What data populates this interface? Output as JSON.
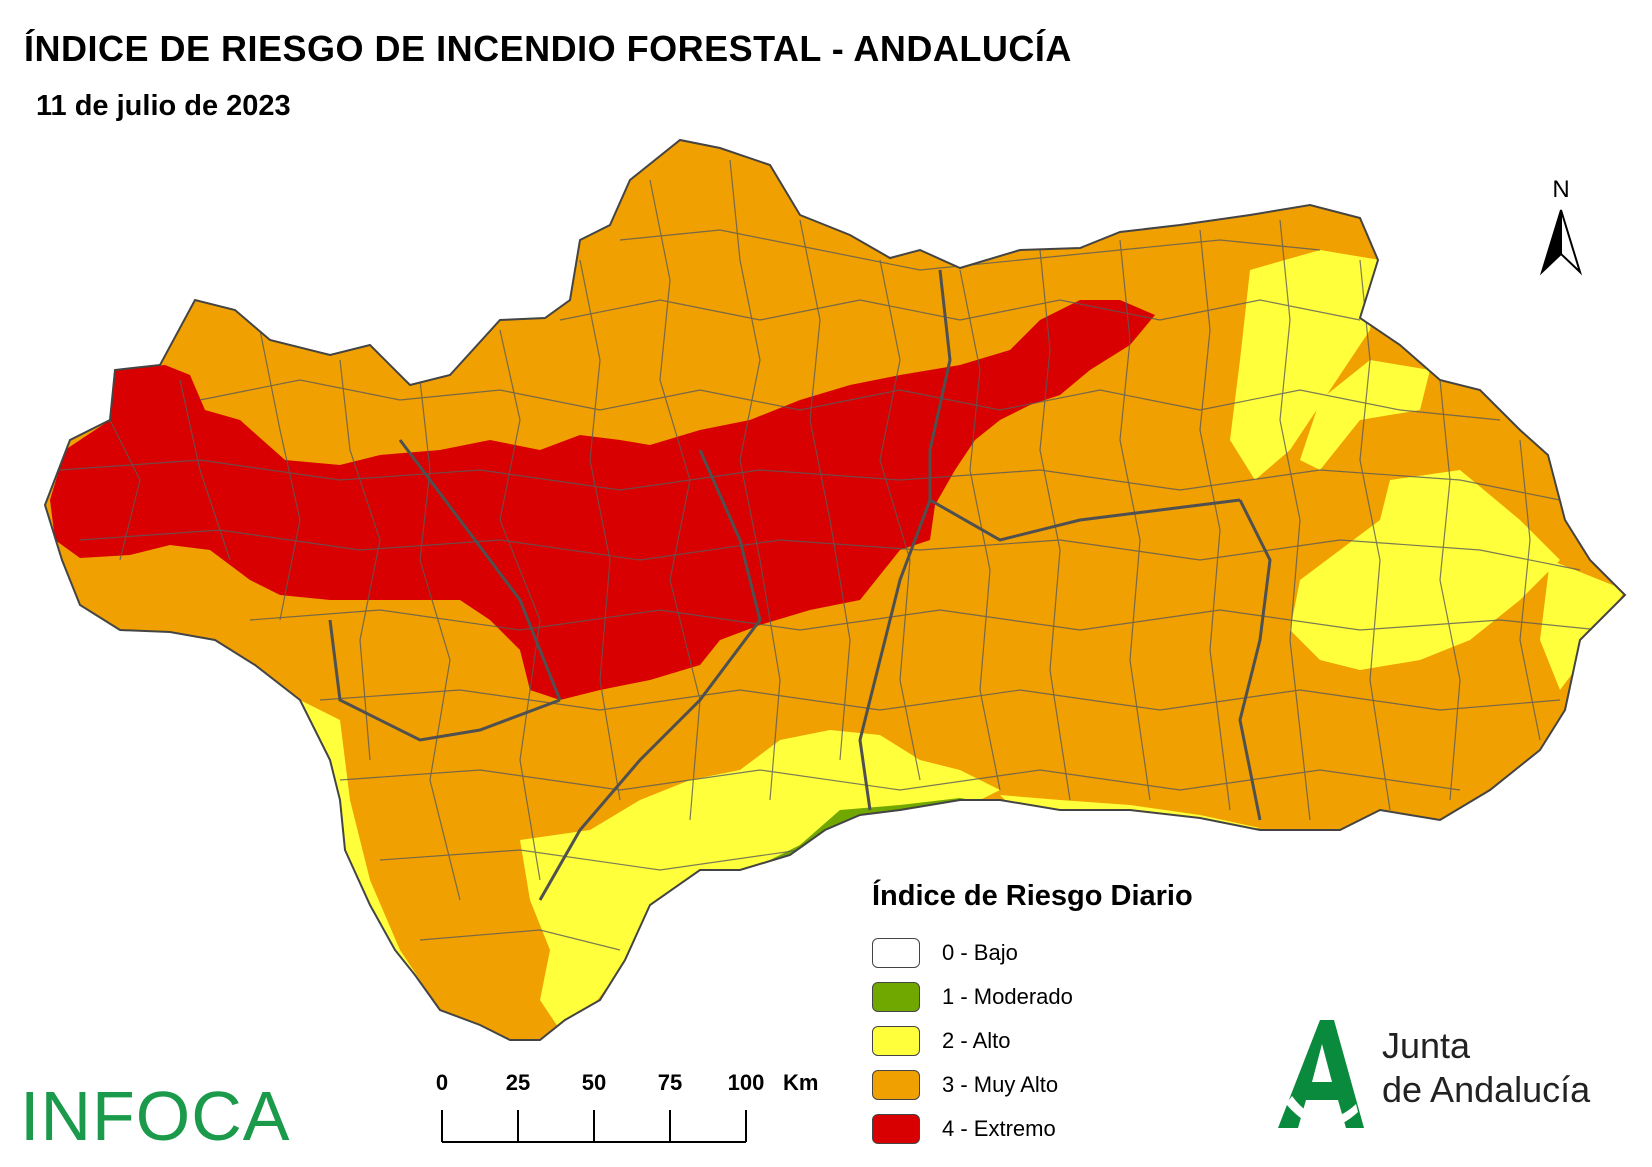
{
  "title": "ÍNDICE DE RIESGO DE INCENDIO FORESTAL - ANDALUCÍA",
  "subtitle": "11 de julio de 2023",
  "north_label": "N",
  "legend": {
    "title": "Índice de Riesgo Diario",
    "items": [
      {
        "label": "0 - Bajo",
        "color": "#ffffff"
      },
      {
        "label": "1 - Moderado",
        "color": "#70a800"
      },
      {
        "label": "2 - Alto",
        "color": "#ffff3c"
      },
      {
        "label": "3 - Muy Alto",
        "color": "#f0a000"
      },
      {
        "label": "4 - Extremo",
        "color": "#d80000"
      }
    ]
  },
  "scale": {
    "ticks": [
      "0",
      "25",
      "50",
      "75",
      "100"
    ],
    "unit": "Km"
  },
  "logos": {
    "left": "INFOCA",
    "right_line1": "Junta",
    "right_line2": "de Andalucía"
  },
  "colors": {
    "boundary": "#5a5a5a",
    "infoca_green": "#1a9a4a",
    "junta_green": "#0a8a3c"
  }
}
